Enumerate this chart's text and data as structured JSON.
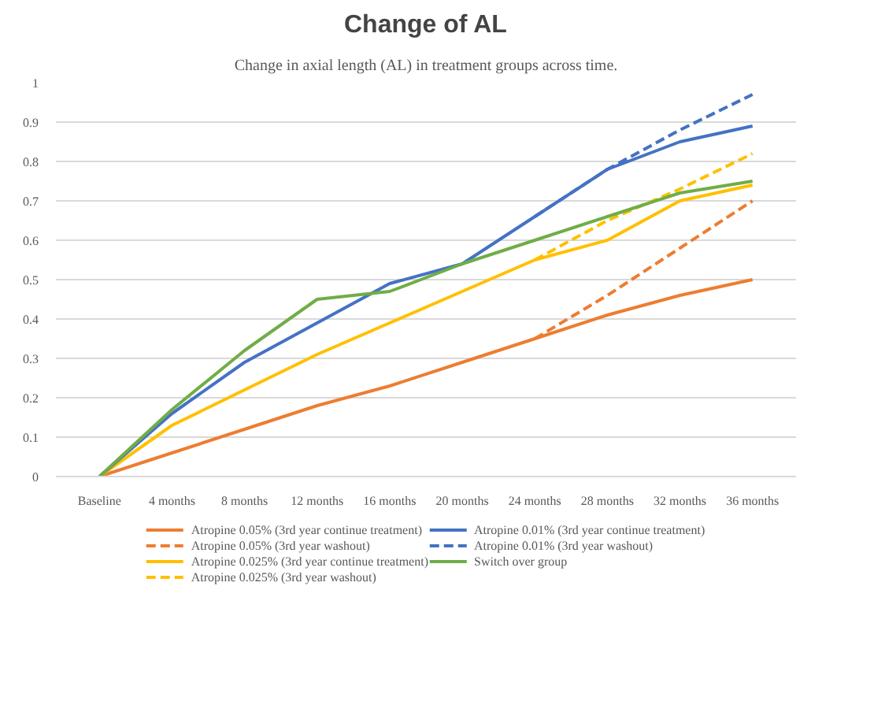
{
  "chart_data": {
    "type": "line",
    "title": "Change of AL",
    "subtitle": "Change in axial length (AL) in treatment groups across time.",
    "categories": [
      "Baseline",
      "4 months",
      "8 months",
      "12 months",
      "16 months",
      "20 months",
      "24 months",
      "28 months",
      "32 months",
      "36 months"
    ],
    "ylim": [
      0,
      1
    ],
    "yticks": [
      0,
      0.1,
      0.2,
      0.3,
      0.4,
      0.5,
      0.6,
      0.7,
      0.8,
      0.9,
      1
    ],
    "grid": "y",
    "legend": "bottom",
    "marker": "none",
    "series": [
      {
        "name": "Atropine 0.05% (3rd year continue treatment)",
        "color": "#ed7d31",
        "line_style": "solid",
        "values": [
          0,
          0.06,
          0.12,
          0.18,
          0.23,
          0.29,
          0.35,
          0.41,
          0.46,
          0.5
        ]
      },
      {
        "name": "Atropine 0.05% (3rd year washout)",
        "color": "#ed7d31",
        "line_style": "dashed",
        "values": [
          null,
          null,
          null,
          null,
          null,
          null,
          0.35,
          0.46,
          0.58,
          0.7
        ]
      },
      {
        "name": "Atropine 0.025% (3rd year continue treatment)",
        "color": "#ffc000",
        "line_style": "solid",
        "values": [
          0,
          0.13,
          0.22,
          0.31,
          0.39,
          0.47,
          0.55,
          0.6,
          0.7,
          0.74
        ]
      },
      {
        "name": "Atropine 0.025% (3rd year washout)",
        "color": "#ffc000",
        "line_style": "dashed",
        "values": [
          null,
          null,
          null,
          null,
          null,
          null,
          0.55,
          0.65,
          0.73,
          0.82
        ]
      },
      {
        "name": "Atropine 0.01% (3rd year continue treatment)",
        "color": "#4472c4",
        "line_style": "solid",
        "values": [
          0,
          0.16,
          0.29,
          0.39,
          0.49,
          0.54,
          0.66,
          0.78,
          0.85,
          0.89
        ]
      },
      {
        "name": "Atropine 0.01% (3rd year washout)",
        "color": "#4472c4",
        "line_style": "dashed",
        "values": [
          null,
          null,
          null,
          null,
          null,
          null,
          0.66,
          0.78,
          0.88,
          0.97
        ]
      },
      {
        "name": "Switch over group",
        "color": "#70ad47",
        "line_style": "solid",
        "values": [
          0,
          0.17,
          0.32,
          0.45,
          0.47,
          0.54,
          0.6,
          0.66,
          0.72,
          0.75
        ]
      }
    ]
  }
}
